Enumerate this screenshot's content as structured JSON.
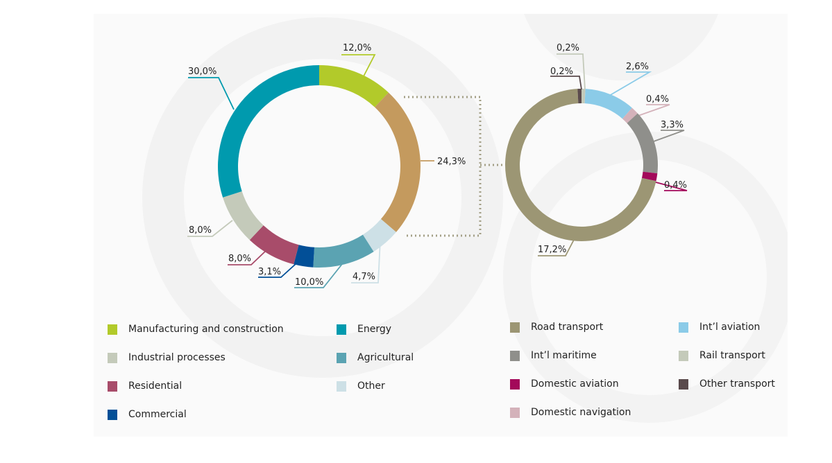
{
  "chart_data": [
    {
      "type": "pie",
      "donut": true,
      "slices": [
        {
          "label": "Manufacturing and construction",
          "value": 12.0,
          "text": "12,0%",
          "color": "#B2CA2A"
        },
        {
          "label": "",
          "value": 24.3,
          "text": "24,3%",
          "color": "#C49A5E"
        },
        {
          "label": "Other",
          "value": 4.7,
          "text": "4,7%",
          "color": "#CDE0E6"
        },
        {
          "label": "Agricultural",
          "value": 10.0,
          "text": "10,0%",
          "color": "#5BA3B2"
        },
        {
          "label": "Commercial",
          "value": 3.1,
          "text": "3,1%",
          "color": "#024F97"
        },
        {
          "label": "Residential",
          "value": 8.0,
          "text": "8,0%",
          "color": "#A84C6A"
        },
        {
          "label": "Industrial processes",
          "value": 8.0,
          "text": "8,0%",
          "color": "#C4CABA"
        },
        {
          "label": "Energy",
          "value": 30.0,
          "text": "30,0%",
          "color": "#009AAE"
        }
      ],
      "exploded_slice": "24,3%"
    },
    {
      "type": "pie",
      "donut": true,
      "slices": [
        {
          "label": "Rail transport",
          "value": 0.2,
          "text": "0,2%",
          "color": "#C4CABA"
        },
        {
          "label": "Int’l aviation",
          "value": 2.6,
          "text": "2,6%",
          "color": "#8BCBE8"
        },
        {
          "label": "Domestic navigation",
          "value": 0.4,
          "text": "0,4%",
          "color": "#D4B2BA"
        },
        {
          "label": "Int’l maritime",
          "value": 3.3,
          "text": "3,3%",
          "color": "#8F8F8B"
        },
        {
          "label": "Domestic aviation",
          "value": 0.4,
          "text": "0,4%",
          "color": "#A3095A"
        },
        {
          "label": "Road transport",
          "value": 17.2,
          "text": "17,2%",
          "color": "#9C9674"
        },
        {
          "label": "Other transport",
          "value": 0.2,
          "text": "0,2%",
          "color": "#5A4A4C"
        }
      ]
    }
  ],
  "legend": {
    "left": [
      {
        "label": "Manufacturing and construction",
        "color": "#B2CA2A"
      },
      {
        "label": "Industrial processes",
        "color": "#C4CABA"
      },
      {
        "label": "Residential",
        "color": "#A84C6A"
      },
      {
        "label": "Commercial",
        "color": "#024F97"
      },
      {
        "label": "Energy",
        "color": "#009AAE"
      },
      {
        "label": "Agricultural",
        "color": "#5BA3B2"
      },
      {
        "label": "Other",
        "color": "#CDE0E6"
      }
    ],
    "right": [
      {
        "label": "Road transport",
        "color": "#9C9674"
      },
      {
        "label": "Int’l maritime",
        "color": "#8F8F8B"
      },
      {
        "label": "Domestic aviation",
        "color": "#A3095A"
      },
      {
        "label": "Domestic navigation",
        "color": "#D4B2BA"
      },
      {
        "label": "Int’l aviation",
        "color": "#8BCBE8"
      },
      {
        "label": "Rail transport",
        "color": "#C4CABA"
      },
      {
        "label": "Other transport",
        "color": "#5A4A4C"
      }
    ]
  }
}
